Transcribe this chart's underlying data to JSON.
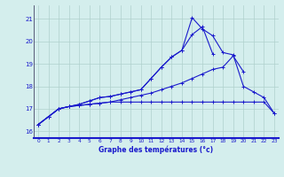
{
  "xlabel": "Graphe des températures (°c)",
  "bg_color": "#d4eeed",
  "line_color": "#1a1acc",
  "grid_color": "#b0d0cc",
  "x_ticks": [
    0,
    1,
    2,
    3,
    4,
    5,
    6,
    7,
    8,
    9,
    10,
    11,
    12,
    13,
    14,
    15,
    16,
    17,
    18,
    19,
    20,
    21,
    22,
    23
  ],
  "y_ticks": [
    16,
    17,
    18,
    19,
    20,
    21
  ],
  "xlim": [
    -0.4,
    23.4
  ],
  "ylim": [
    15.7,
    21.6
  ],
  "series": {
    "line1": [
      16.3,
      16.65,
      17.0,
      17.1,
      17.15,
      17.2,
      17.25,
      17.3,
      17.3,
      17.3,
      17.3,
      17.3,
      17.3,
      17.3,
      17.3,
      17.3,
      17.3,
      17.3,
      17.3,
      17.3,
      17.3,
      17.3,
      17.3,
      16.8
    ],
    "line2": [
      16.3,
      16.65,
      17.0,
      17.1,
      17.15,
      17.2,
      17.25,
      17.3,
      17.4,
      17.5,
      17.6,
      17.7,
      17.85,
      18.0,
      18.15,
      18.35,
      18.55,
      18.75,
      18.85,
      19.35,
      18.65,
      null,
      null,
      null
    ],
    "line3": [
      16.3,
      16.65,
      17.0,
      17.1,
      17.2,
      17.35,
      17.5,
      17.55,
      17.65,
      17.75,
      17.85,
      18.35,
      18.85,
      19.3,
      19.6,
      20.3,
      20.65,
      19.45,
      null,
      null,
      null,
      null,
      null,
      null
    ],
    "line4": [
      16.3,
      16.65,
      17.0,
      17.1,
      17.2,
      17.35,
      17.5,
      17.55,
      17.65,
      17.75,
      17.85,
      18.35,
      18.85,
      19.3,
      19.6,
      21.05,
      20.55,
      20.25,
      19.5,
      19.4,
      18.0,
      17.75,
      17.5,
      16.8
    ]
  }
}
